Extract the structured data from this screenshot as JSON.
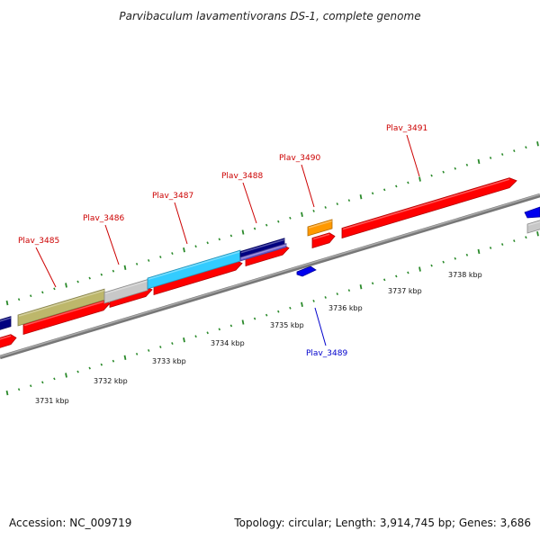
{
  "title": "Parvibaculum lavamentivorans DS-1, complete genome",
  "footer": {
    "accession": "Accession: NC_009719",
    "topology": "Topology: circular; Length: 3,914,745 bp; Genes: 3,686"
  },
  "colors": {
    "forward_label": "#cc0000",
    "reverse_label": "#0000cc",
    "backbone": "#888888",
    "ticks": "#2a8a2a",
    "forward_cds": "#ff0000",
    "reverse_cds": "#0000ee",
    "olive": "#bdb76b",
    "cyan": "#33ccff",
    "silver": "#c8c8c8",
    "navy": "#000080",
    "slate": "#6a5acd",
    "orange": "#ff9900"
  },
  "gene_labels": [
    {
      "text": "Plav_3485",
      "strand": "forward"
    },
    {
      "text": "Plav_3486",
      "strand": "forward"
    },
    {
      "text": "Plav_3487",
      "strand": "forward"
    },
    {
      "text": "Plav_3488",
      "strand": "forward"
    },
    {
      "text": "Plav_3490",
      "strand": "forward"
    },
    {
      "text": "Plav_3491",
      "strand": "forward"
    },
    {
      "text": "Plav_3489",
      "strand": "reverse"
    }
  ],
  "kbp_labels": [
    "3731 kbp",
    "3732 kbp",
    "3733 kbp",
    "3734 kbp",
    "3735 kbp",
    "3736 kbp",
    "3737 kbp",
    "3738 kbp"
  ]
}
